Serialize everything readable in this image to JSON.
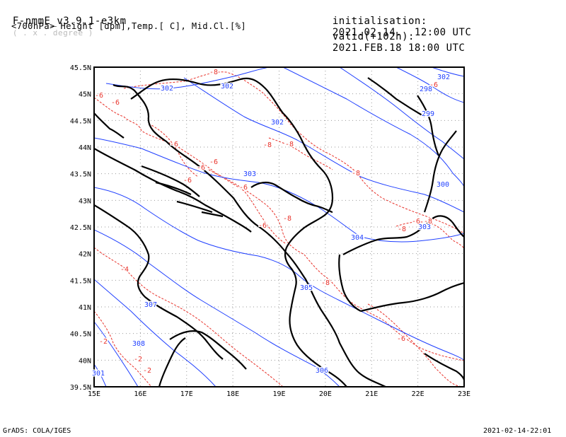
{
  "header": {
    "model": "F-nmmE_v3.9.1-e3km",
    "units_hint": "( . x . degree )",
    "field": "<700hPa> Height [dpm],Temp.[ C], Mid.Cl.[%]",
    "init_label": "initialisation:",
    "init_value": "2021.02.14.  12:00 UTC",
    "valid_label": "valid(+102h):",
    "valid_value": "2021.FEB.18 18:00 UTC"
  },
  "footer": {
    "left": "GrADS: COLA/IGES",
    "right": "2021-02-14-22:01"
  },
  "map": {
    "lon_labels": [
      "15E",
      "16E",
      "17E",
      "18E",
      "19E",
      "20E",
      "21E",
      "22E",
      "23E"
    ],
    "lat_labels": [
      "45.5N",
      "45N",
      "44.5N",
      "44N",
      "43.5N",
      "43N",
      "42.5N",
      "42N",
      "41.5N",
      "41N",
      "40.5N",
      "40N",
      "39.5N"
    ],
    "height_contour_labels": [
      "302",
      "302",
      "302",
      "303",
      "303",
      "304",
      "305",
      "306",
      "307",
      "308",
      "301",
      "300",
      "299",
      "298",
      "302"
    ],
    "temp_contour_labels": [
      "-8",
      "-6",
      "-6",
      "-6",
      "-6",
      "-6",
      "-6",
      "-6",
      "-6",
      "-8",
      "-8",
      "-8",
      "-8",
      "-8",
      "-6",
      "-6",
      "-4",
      "-2",
      "-2",
      "-2",
      "-8",
      "-8",
      "-6"
    ],
    "colors": {
      "height": "#1f3fff",
      "temp": "#e8322a",
      "coast": "#000000",
      "grid": "#999999"
    }
  }
}
